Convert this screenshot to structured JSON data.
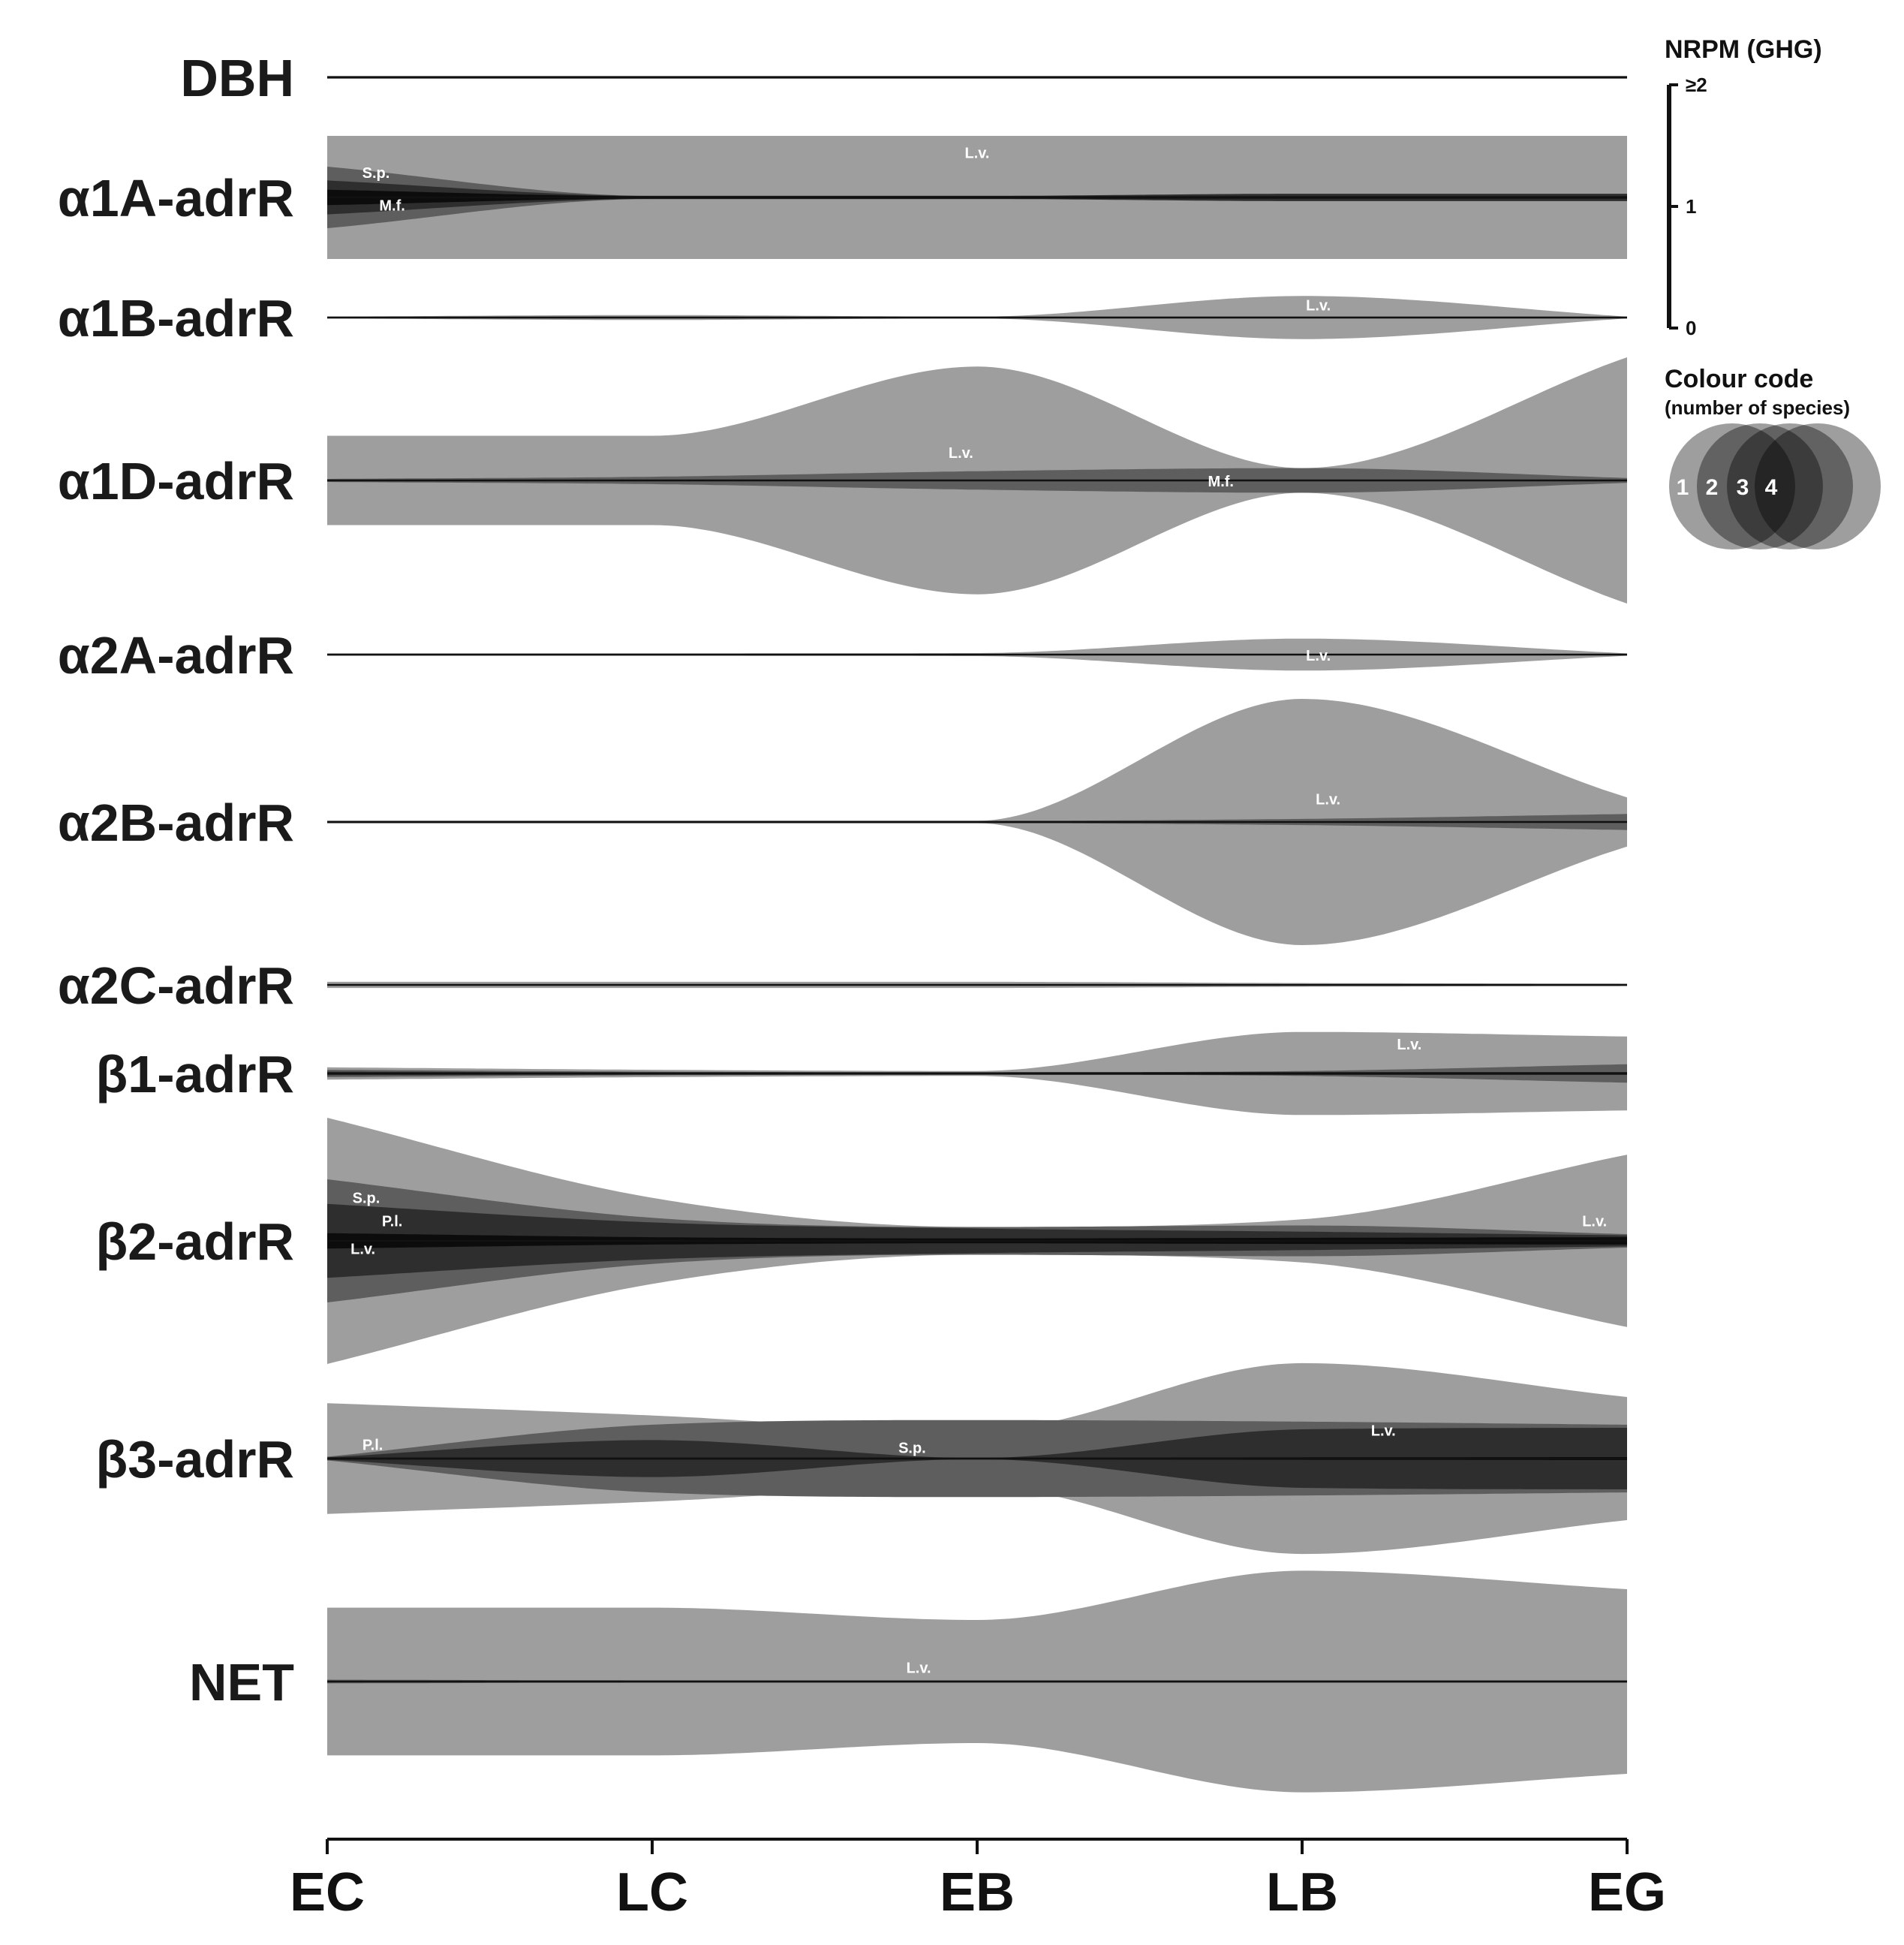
{
  "chart_data": {
    "type": "area",
    "x": [
      "EC",
      "LC",
      "EB",
      "LB",
      "EG"
    ],
    "colors": {
      "1": "#9e9e9e",
      "2": "#5e5e5e",
      "3": "#2e2e2e",
      "4": "#0c0c0c"
    },
    "scale": {
      "title": "NRPM (GHG)",
      "ticks": [
        "0",
        "1",
        "≥2"
      ],
      "min": 0,
      "max": 2
    },
    "colour_code": {
      "title": "Colour code",
      "subtitle": "(number of species)",
      "levels": [
        "1",
        "2",
        "3",
        "4"
      ]
    },
    "rows": [
      {
        "gene": "DBH",
        "bands": [
          {
            "level": 4,
            "widths": [
              0.04,
              0.04,
              0.04,
              0.04,
              0.04
            ]
          }
        ],
        "labels": []
      },
      {
        "gene": "α1A-adrR",
        "bands": [
          {
            "level": 1,
            "widths": [
              2.0,
              2.0,
              2.0,
              2.0,
              2.0
            ]
          },
          {
            "level": 2,
            "widths": [
              1.0,
              0.05,
              0.05,
              0.05,
              0.05
            ]
          },
          {
            "level": 3,
            "widths": [
              0.55,
              0.05,
              0.05,
              0.12,
              0.12
            ]
          },
          {
            "level": 4,
            "widths": [
              0.25,
              0.04,
              0.04,
              0.04,
              0.04
            ]
          }
        ],
        "labels": [
          {
            "text": "S.p.",
            "at": 0.15,
            "dy": 0.8
          },
          {
            "text": "M.f.",
            "at": 0.2,
            "dy": -0.25
          },
          {
            "text": "L.v.",
            "at": 2.0,
            "dy": 1.45
          }
        ]
      },
      {
        "gene": "α1B-adrR",
        "bands": [
          {
            "level": 1,
            "widths": [
              0.03,
              0.08,
              0.03,
              0.7,
              0.03
            ]
          },
          {
            "level": 2,
            "widths": [
              0.03,
              0.03,
              0.03,
              0.03,
              0.03
            ]
          }
        ],
        "labels": [
          {
            "text": "L.v.",
            "at": 3.05,
            "dy": 0.4
          }
        ]
      },
      {
        "gene": "α1D-adrR",
        "bands": [
          {
            "level": 1,
            "widths": [
              1.45,
              1.45,
              3.7,
              0.4,
              4.0
            ]
          },
          {
            "level": 2,
            "widths": [
              0.05,
              0.12,
              0.3,
              0.4,
              0.08
            ]
          }
        ],
        "labels": [
          {
            "text": "L.v.",
            "at": 1.95,
            "dy": 0.9
          },
          {
            "text": "M.f.",
            "at": 2.75,
            "dy": -0.02
          }
        ]
      },
      {
        "gene": "α2A-adrR",
        "bands": [
          {
            "level": 1,
            "widths": [
              0.04,
              0.04,
              0.05,
              0.52,
              0.04
            ]
          }
        ],
        "labels": [
          {
            "text": "L.v.",
            "at": 3.05,
            "dy": -0.02
          }
        ]
      },
      {
        "gene": "α2B-adrR",
        "bands": [
          {
            "level": 1,
            "widths": [
              0.04,
              0.04,
              0.04,
              4.0,
              0.8
            ]
          },
          {
            "level": 2,
            "widths": [
              0.04,
              0.04,
              0.04,
              0.1,
              0.26
            ]
          }
        ],
        "labels": [
          {
            "text": "L.v.",
            "at": 3.08,
            "dy": 0.75
          }
        ]
      },
      {
        "gene": "α2C-adrR",
        "bands": [
          {
            "level": 1,
            "widths": [
              0.1,
              0.1,
              0.1,
              0.06,
              0.04
            ]
          }
        ],
        "labels": []
      },
      {
        "gene": "β1-adrR",
        "bands": [
          {
            "level": 1,
            "widths": [
              0.2,
              0.12,
              0.08,
              1.35,
              1.2
            ]
          },
          {
            "level": 2,
            "widths": [
              0.12,
              0.06,
              0.04,
              0.08,
              0.3
            ]
          },
          {
            "level": 3,
            "widths": [
              0.06,
              0.04,
              0.04,
              0.05,
              0.05
            ]
          }
        ],
        "labels": [
          {
            "text": "L.v.",
            "at": 3.33,
            "dy": 0.95
          }
        ]
      },
      {
        "gene": "β2-adrR",
        "bands": [
          {
            "level": 1,
            "widths": [
              4.0,
              1.4,
              0.45,
              0.7,
              2.8
            ]
          },
          {
            "level": 2,
            "widths": [
              2.0,
              0.75,
              0.45,
              0.5,
              0.22
            ]
          },
          {
            "level": 3,
            "widths": [
              1.2,
              0.6,
              0.4,
              0.3,
              0.18
            ]
          },
          {
            "level": 4,
            "widths": [
              0.25,
              0.12,
              0.08,
              0.1,
              0.12
            ]
          }
        ],
        "labels": [
          {
            "text": "S.p.",
            "at": 0.12,
            "dy": 1.4
          },
          {
            "text": "P.l.",
            "at": 0.2,
            "dy": 0.65
          },
          {
            "text": "L.v.",
            "at": 0.11,
            "dy": -0.25
          },
          {
            "text": "L.v.",
            "at": 3.9,
            "dy": 0.65
          }
        ]
      },
      {
        "gene": "β3-adrR",
        "bands": [
          {
            "level": 1,
            "widths": [
              1.8,
              1.4,
              0.9,
              3.1,
              2.0
            ]
          },
          {
            "level": 2,
            "widths": [
              0.06,
              1.1,
              1.25,
              1.2,
              1.1
            ]
          },
          {
            "level": 3,
            "widths": [
              0.04,
              0.6,
              0.02,
              0.95,
              1.0
            ]
          },
          {
            "level": 4,
            "widths": [
              0.03,
              0.03,
              0.03,
              0.04,
              0.05
            ]
          }
        ],
        "labels": [
          {
            "text": "P.l.",
            "at": 0.14,
            "dy": 0.45
          },
          {
            "text": "S.p.",
            "at": 1.8,
            "dy": 0.35
          },
          {
            "text": "L.v.",
            "at": 3.25,
            "dy": 0.92
          }
        ]
      },
      {
        "gene": "NET",
        "bands": [
          {
            "level": 1,
            "widths": [
              2.4,
              2.4,
              2.0,
              3.6,
              3.0
            ]
          },
          {
            "level": 2,
            "widths": [
              0.06,
              0.04,
              0.04,
              0.04,
              0.04
            ]
          }
        ],
        "labels": [
          {
            "text": "L.v.",
            "at": 1.82,
            "dy": 0.45
          }
        ]
      }
    ]
  }
}
